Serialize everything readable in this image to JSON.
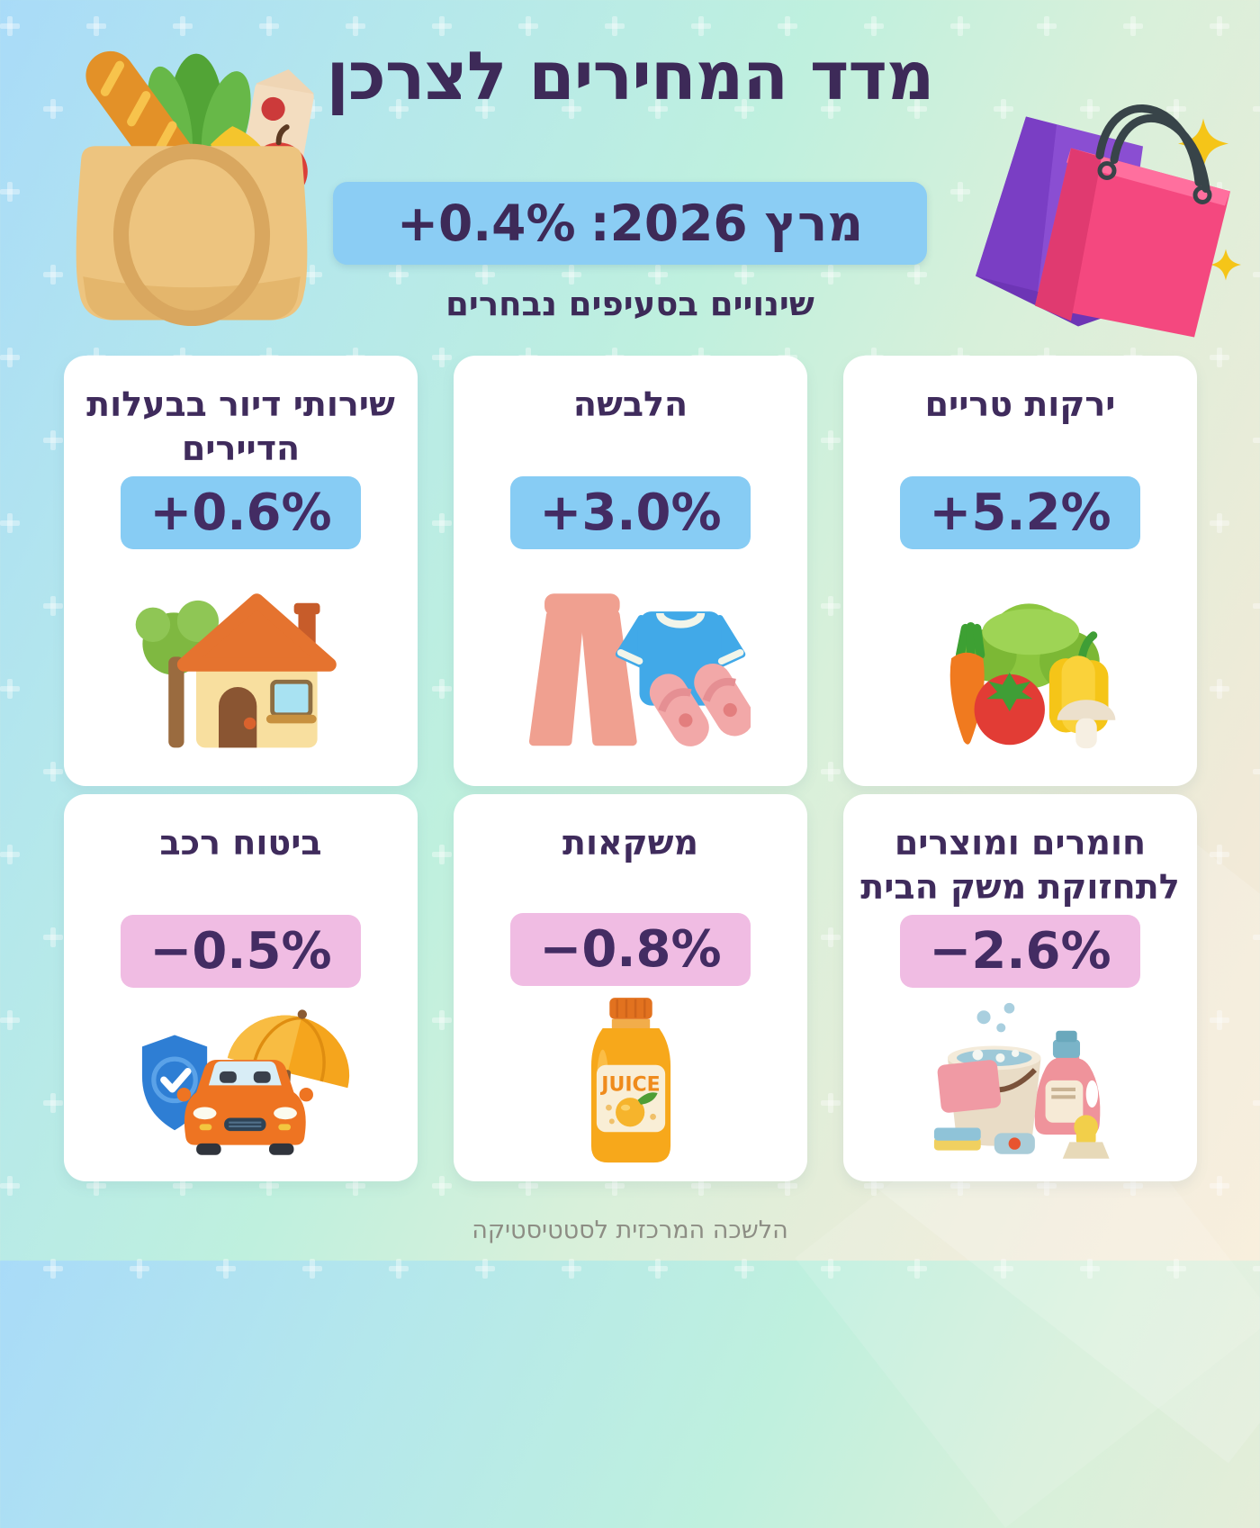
{
  "header": {
    "title": "מדד המחירים לצרכן",
    "period_label": "מרץ 2026:",
    "period_value": "+0.4%",
    "subtitle": "שינויים בסעיפים נבחרים",
    "left_illustration": "grocery-bag-icon",
    "right_illustration": "shopping-bags-icon"
  },
  "cards": [
    {
      "label": "ירקות טריים",
      "value": "+5.2%",
      "change_pct": 5.2,
      "direction": "increase",
      "icon": "vegetables-icon"
    },
    {
      "label": "הלבשה",
      "value": "+3.0%",
      "change_pct": 3.0,
      "direction": "increase",
      "icon": "clothing-icon"
    },
    {
      "label": "שירותי דיור בבעלות הדיירים",
      "value": "+0.6%",
      "change_pct": 0.6,
      "direction": "increase",
      "icon": "house-icon"
    },
    {
      "label": "חומרים ומוצרים לתחזוקת משק הבית",
      "value": "−2.6%",
      "change_pct": -2.6,
      "direction": "decrease",
      "icon": "cleaning-supplies-icon"
    },
    {
      "label": "משקאות",
      "value": "−0.8%",
      "change_pct": -0.8,
      "direction": "decrease",
      "icon": "juice-bottle-icon"
    },
    {
      "label": "ביטוח רכב",
      "value": "−0.5%",
      "change_pct": -0.5,
      "direction": "decrease",
      "icon": "car-insurance-icon"
    }
  ],
  "icons": {
    "juice_label": "JUICE"
  },
  "footer": {
    "source": "הלשכה המרכזית לסטטיסטיקה"
  },
  "colors": {
    "title_text": "#3d2a58",
    "header_badge": "#8bcdf4",
    "positive_badge": "#87ccf4",
    "negative_badge": "#f0bce3",
    "card_background": "#ffffff",
    "background_top_left": "#a9dbf8",
    "background_middle": "#bff0de",
    "background_bottom_right": "#f7ecd7",
    "footer_text": "#8d8d84"
  },
  "chart_data": {
    "type": "table",
    "title": "מדד המחירים לצרכן",
    "subtitle": "מרץ 2026: +0.4%",
    "note": "שינויים בסעיפים נבחרים",
    "overall": {
      "period": "מרץ 2026",
      "change_pct": 0.4
    },
    "categories": [
      "ירקות טריים",
      "הלבשה",
      "שירותי דיור בבעלות הדיירים",
      "חומרים ומוצרים לתחזוקת משק הבית",
      "משקאות",
      "ביטוח רכב"
    ],
    "values": [
      5.2,
      3.0,
      0.6,
      -2.6,
      -0.8,
      -0.5
    ],
    "unit": "%",
    "source": "הלשכה המרכזית לסטטיסטיקה"
  }
}
